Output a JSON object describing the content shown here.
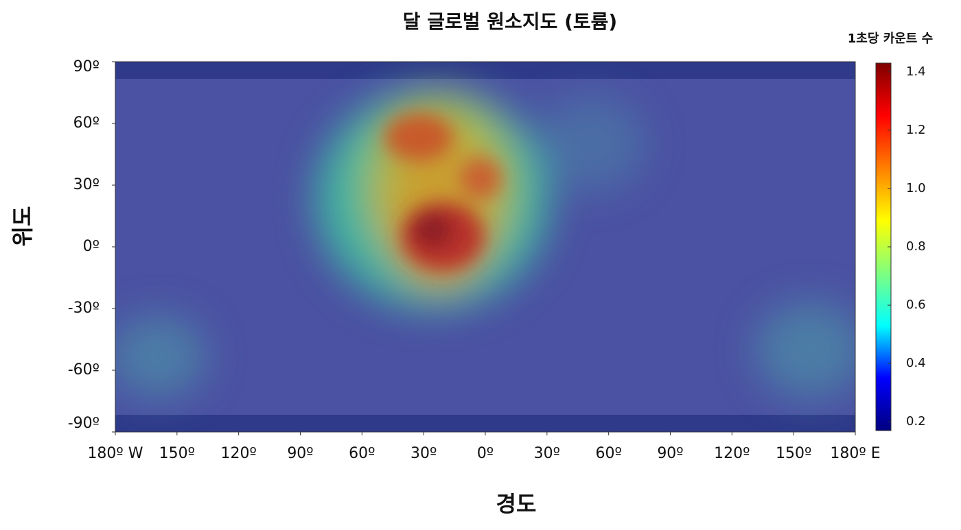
{
  "chart_data": {
    "type": "map",
    "title": "달 글로벌 원소지도 (토륨)",
    "xlabel": "경도",
    "ylabel": "위도",
    "xlim": [
      -180,
      180
    ],
    "xticks": [
      {
        "value": -180,
        "label": "180º W"
      },
      {
        "value": -150,
        "label": "150º"
      },
      {
        "value": -120,
        "label": "120º"
      },
      {
        "value": -90,
        "label": "90º"
      },
      {
        "value": -60,
        "label": "60º"
      },
      {
        "value": -30,
        "label": "30º"
      },
      {
        "value": 0,
        "label": "0º"
      },
      {
        "value": 30,
        "label": "30º"
      },
      {
        "value": 60,
        "label": "60º"
      },
      {
        "value": 90,
        "label": "90º"
      },
      {
        "value": 120,
        "label": "120º"
      },
      {
        "value": 150,
        "label": "150º"
      },
      {
        "value": 180,
        "label": "180º E"
      }
    ],
    "ylim": [
      -90,
      90
    ],
    "yticks": [
      {
        "value": 90,
        "label": "90º"
      },
      {
        "value": 60,
        "label": "60º"
      },
      {
        "value": 30,
        "label": "30º"
      },
      {
        "value": 0,
        "label": "0º"
      },
      {
        "value": -30,
        "label": "-30º"
      },
      {
        "value": -60,
        "label": "-60º"
      },
      {
        "value": -90,
        "label": "-90º"
      }
    ],
    "colorbar": {
      "label": "1초당 카운트 수",
      "lim": [
        0.17,
        1.43
      ],
      "ticks": [
        0.2,
        0.4,
        0.6,
        0.8,
        {
          "value": 1,
          "label": "1.0"
        },
        1.2,
        1.4
      ],
      "colormap": [
        "#00007f",
        "#0000ff",
        "#00ffff",
        "#7fff7f",
        "#ffff00",
        "#ff7f00",
        "#ff0000",
        "#7f0000"
      ]
    }
  }
}
